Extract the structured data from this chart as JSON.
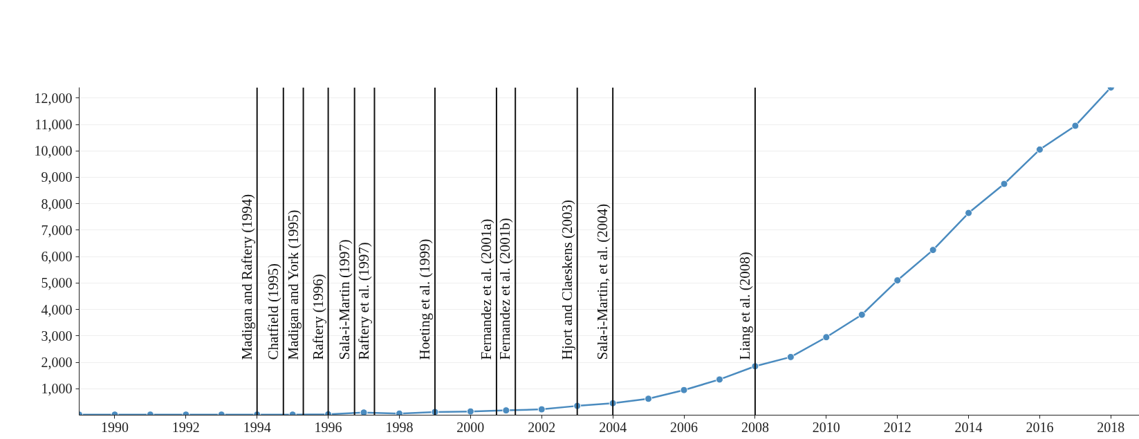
{
  "chart_data": {
    "type": "line",
    "x": [
      1989,
      1990,
      1991,
      1992,
      1993,
      1994,
      1995,
      1996,
      1997,
      1998,
      1999,
      2000,
      2001,
      2002,
      2003,
      2004,
      2005,
      2006,
      2007,
      2008,
      2009,
      2010,
      2011,
      2012,
      2013,
      2014,
      2015,
      2016,
      2017,
      2018
    ],
    "series": [
      {
        "color": "#4a8bbf",
        "values": [
          20,
          20,
          20,
          20,
          20,
          20,
          20,
          30,
          100,
          60,
          120,
          140,
          180,
          220,
          350,
          450,
          620,
          950,
          1350,
          1850,
          2200,
          2950,
          3800,
          5100,
          6250,
          7650,
          8750,
          10050,
          10950,
          12400
        ]
      }
    ],
    "marker": "circle",
    "line_style": "solid",
    "grid": "y",
    "xlim": [
      1989,
      2018.8
    ],
    "ylim": [
      0,
      12400
    ],
    "xticks": [
      1990,
      1992,
      1994,
      1996,
      1998,
      2000,
      2002,
      2004,
      2006,
      2008,
      2010,
      2012,
      2014,
      2016,
      2018
    ],
    "yticks": [
      {
        "value": 1000,
        "label": "1,000"
      },
      {
        "value": 2000,
        "label": "2,000"
      },
      {
        "value": 3000,
        "label": "3,000"
      },
      {
        "value": 4000,
        "label": "4,000"
      },
      {
        "value": 5000,
        "label": "5,000"
      },
      {
        "value": 6000,
        "label": "6,000"
      },
      {
        "value": 7000,
        "label": "7,000"
      },
      {
        "value": 8000,
        "label": "8,000"
      },
      {
        "value": 9000,
        "label": "9,000"
      },
      {
        "value": 10000,
        "label": "10,000"
      },
      {
        "value": 11000,
        "label": "11,000"
      },
      {
        "value": 12000,
        "label": "12,000"
      }
    ],
    "ref_lines": [
      {
        "axis": "x",
        "value": 1994.0,
        "label": "Madigan and Raftery (1994)",
        "color": "#111111"
      },
      {
        "axis": "x",
        "value": 1994.74,
        "label": "Chatfield (1995)",
        "color": "#111111"
      },
      {
        "axis": "x",
        "value": 1995.3,
        "label": "Madigan and York (1995)",
        "color": "#111111"
      },
      {
        "axis": "x",
        "value": 1996.0,
        "label": "Raftery (1996)",
        "color": "#111111"
      },
      {
        "axis": "x",
        "value": 1996.74,
        "label": "Sala-i-Martin (1997)",
        "color": "#111111"
      },
      {
        "axis": "x",
        "value": 1997.3,
        "label": "Raftery et al. (1997)",
        "color": "#111111"
      },
      {
        "axis": "x",
        "value": 1999.0,
        "label": "Hoeting et al. (1999)",
        "color": "#111111"
      },
      {
        "axis": "x",
        "value": 2000.73,
        "label": "Fernandez et al. (2001a)",
        "color": "#111111"
      },
      {
        "axis": "x",
        "value": 2001.26,
        "label": "Fernandez et al. (2001b)",
        "color": "#111111"
      },
      {
        "axis": "x",
        "value": 2003.0,
        "label": "Hjort and Claeskens (2003)",
        "color": "#111111"
      },
      {
        "axis": "x",
        "value": 2004.0,
        "label": "Sala-i-Martin, et al. (2004)",
        "color": "#111111"
      },
      {
        "axis": "x",
        "value": 2008.0,
        "label": "Liang et al. (2008)",
        "color": "#111111"
      }
    ]
  }
}
